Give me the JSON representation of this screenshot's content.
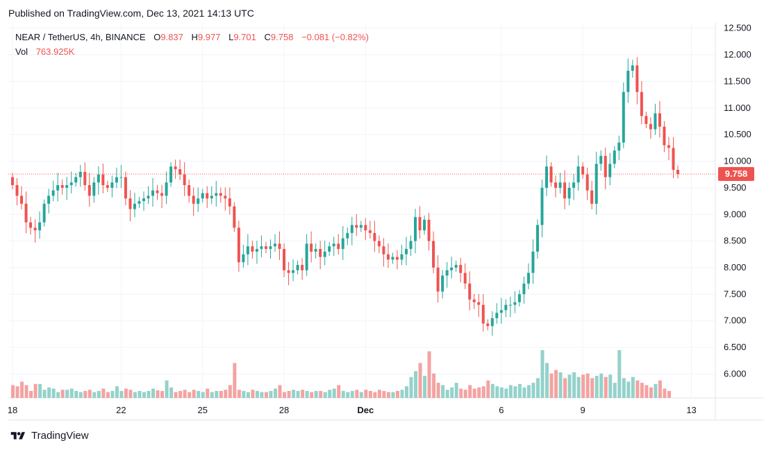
{
  "header": {
    "published": "Published on TradingView.com, Dec 13, 2021 14:13 UTC"
  },
  "legend": {
    "symbol": "NEAR / TetherUS, 4h, BINANCE",
    "open_label": "O",
    "open": "9.837",
    "high_label": "H",
    "high": "9.977",
    "low_label": "L",
    "low": "9.701",
    "close_label": "C",
    "close": "9.758",
    "change": "−0.081 (−0.82%)",
    "vol_label": "Vol",
    "vol": "763.925K"
  },
  "brand": {
    "name": "TradingView"
  },
  "colors": {
    "up": "#26a69a",
    "down": "#ef5350",
    "vol_up": "#94d2ca",
    "vol_down": "#f3a3a1",
    "grid": "#f0f3fa",
    "axis_text": "#131722"
  },
  "chart_data": {
    "type": "candlestick",
    "title": "NEAR / TetherUS, 4h, BINANCE",
    "interval": "4h",
    "ylim": [
      5.55,
      12.6
    ],
    "y_ticks": [
      "12.500",
      "12.000",
      "11.500",
      "11.000",
      "10.500",
      "10.000",
      "9.500",
      "9.000",
      "8.500",
      "8.000",
      "7.500",
      "7.000",
      "6.500",
      "6.000"
    ],
    "last_price": "9.758",
    "x_ticks": [
      {
        "label": "18",
        "index": 0
      },
      {
        "label": "22",
        "index": 24
      },
      {
        "label": "25",
        "index": 42
      },
      {
        "label": "28",
        "index": 60
      },
      {
        "label": "Dec",
        "index": 78
      },
      {
        "label": "6",
        "index": 108
      },
      {
        "label": "9",
        "index": 126
      },
      {
        "label": "13",
        "index": 150
      }
    ],
    "close": [
      9.55,
      9.35,
      9.2,
      8.85,
      8.75,
      8.7,
      8.85,
      9.2,
      9.35,
      9.45,
      9.55,
      9.5,
      9.55,
      9.6,
      9.7,
      9.8,
      9.55,
      9.35,
      9.6,
      9.75,
      9.55,
      9.5,
      9.6,
      9.7,
      9.7,
      9.3,
      9.1,
      9.2,
      9.25,
      9.3,
      9.35,
      9.45,
      9.4,
      9.35,
      9.6,
      9.9,
      9.85,
      9.75,
      9.55,
      9.35,
      9.2,
      9.3,
      9.4,
      9.3,
      9.35,
      9.4,
      9.35,
      9.3,
      9.15,
      8.75,
      8.1,
      8.25,
      8.4,
      8.3,
      8.35,
      8.4,
      8.35,
      8.4,
      8.45,
      8.35,
      7.95,
      7.9,
      7.95,
      8.05,
      7.95,
      8.45,
      8.3,
      8.35,
      8.2,
      8.3,
      8.4,
      8.45,
      8.35,
      8.55,
      8.65,
      8.8,
      8.75,
      8.8,
      8.7,
      8.65,
      8.5,
      8.4,
      8.25,
      8.15,
      8.2,
      8.15,
      8.25,
      8.35,
      8.5,
      8.95,
      8.7,
      8.9,
      8.5,
      8.0,
      7.55,
      7.85,
      7.95,
      8.0,
      8.05,
      7.9,
      7.7,
      7.4,
      7.35,
      7.3,
      6.95,
      6.9,
      7.05,
      7.15,
      7.2,
      7.3,
      7.3,
      7.35,
      7.5,
      7.7,
      7.9,
      8.3,
      8.8,
      9.5,
      9.9,
      9.6,
      9.5,
      9.6,
      9.3,
      9.5,
      9.6,
      9.9,
      9.75,
      9.45,
      9.2,
      9.95,
      10.1,
      9.7,
      9.95,
      10.2,
      10.35,
      11.3,
      11.7,
      11.8,
      11.3,
      10.85,
      10.7,
      10.6,
      10.9,
      10.65,
      10.3,
      10.25,
      9.837,
      9.758
    ],
    "volume_share_of_max": [
      0.22,
      0.2,
      0.28,
      0.22,
      0.12,
      0.24,
      0.24,
      0.14,
      0.18,
      0.16,
      0.1,
      0.14,
      0.14,
      0.16,
      0.12,
      0.1,
      0.12,
      0.14,
      0.1,
      0.12,
      0.16,
      0.1,
      0.12,
      0.2,
      0.12,
      0.16,
      0.14,
      0.1,
      0.12,
      0.1,
      0.12,
      0.16,
      0.13,
      0.12,
      0.3,
      0.18,
      0.1,
      0.12,
      0.14,
      0.1,
      0.14,
      0.12,
      0.1,
      0.16,
      0.1,
      0.12,
      0.12,
      0.14,
      0.22,
      0.6,
      0.14,
      0.12,
      0.1,
      0.14,
      0.12,
      0.1,
      0.1,
      0.12,
      0.16,
      0.22,
      0.1,
      0.12,
      0.14,
      0.12,
      0.14,
      0.12,
      0.1,
      0.12,
      0.12,
      0.1,
      0.14,
      0.16,
      0.22,
      0.12,
      0.1,
      0.12,
      0.14,
      0.1,
      0.14,
      0.12,
      0.1,
      0.14,
      0.12,
      0.1,
      0.1,
      0.12,
      0.14,
      0.2,
      0.36,
      0.46,
      0.6,
      0.38,
      0.8,
      0.42,
      0.26,
      0.22,
      0.14,
      0.18,
      0.26,
      0.16,
      0.14,
      0.22,
      0.16,
      0.18,
      0.2,
      0.3,
      0.24,
      0.2,
      0.18,
      0.16,
      0.22,
      0.2,
      0.24,
      0.18,
      0.22,
      0.26,
      0.34,
      0.82,
      0.6,
      0.42,
      0.48,
      0.44,
      0.34,
      0.4,
      0.44,
      0.36,
      0.4,
      0.42,
      0.34,
      0.38,
      0.42,
      0.36,
      0.4,
      0.26,
      0.82,
      0.34,
      0.28,
      0.36,
      0.3,
      0.26,
      0.22,
      0.18,
      0.24,
      0.3,
      0.16,
      0.12
    ]
  }
}
